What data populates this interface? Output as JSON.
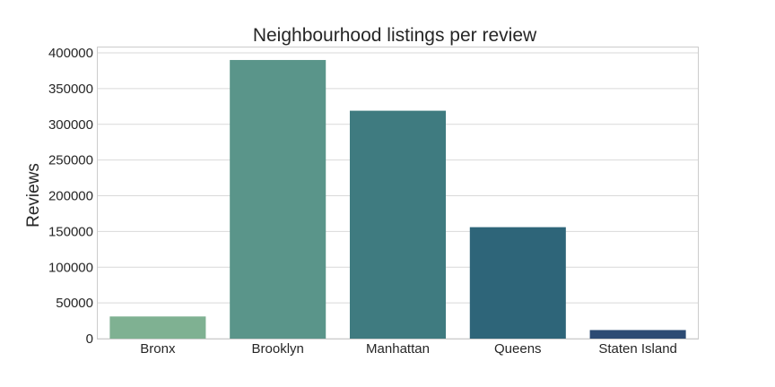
{
  "chart_data": {
    "type": "bar",
    "title": "Neighbourhood listings per review",
    "xlabel": "",
    "ylabel": "Reviews",
    "categories": [
      "Bronx",
      "Brooklyn",
      "Manhattan",
      "Queens",
      "Staten Island"
    ],
    "values": [
      31000,
      390000,
      319000,
      156000,
      12000
    ],
    "colors": [
      "#7fb192",
      "#5a958a",
      "#3f7b80",
      "#2e6579",
      "#2c4b73"
    ],
    "ylim": [
      0,
      400000
    ],
    "yticks": [
      "0",
      "50000",
      "100000",
      "150000",
      "200000",
      "250000",
      "300000",
      "350000",
      "400000"
    ],
    "grid": true,
    "legend": "none"
  }
}
